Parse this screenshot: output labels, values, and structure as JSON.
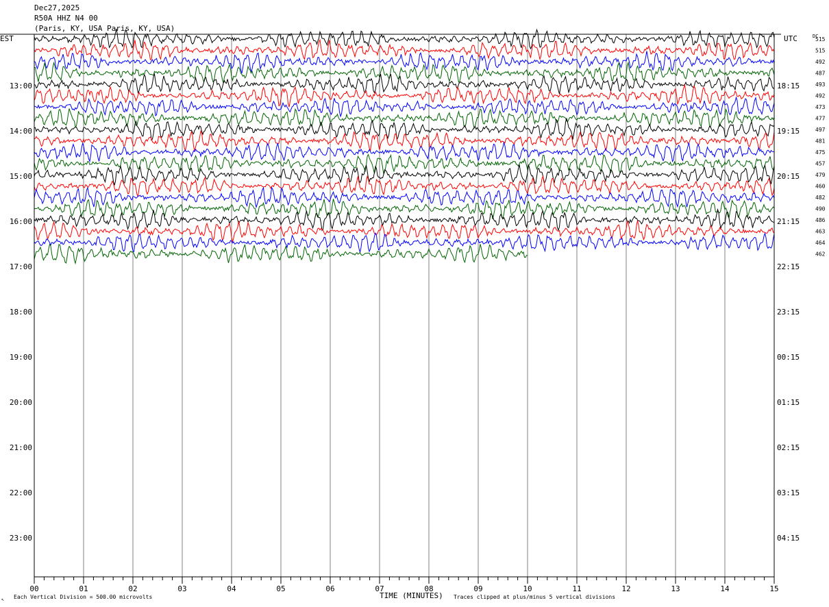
{
  "header": {
    "date": "Dec27,2025",
    "station": "R50A HHZ N4 00",
    "location": "(Paris, KY, USA Paris, KY, USA)"
  },
  "axis": {
    "left_tz": "EST",
    "right_tz": "UTC",
    "dc_label": "DC",
    "xlabel": "TIME (MINUTES)"
  },
  "footer": {
    "scale": "Each Vertical Division =  500.00 microvolts",
    "clip": "Traces clipped at plus/minus 5 vertical divisions",
    "mark": "↖"
  },
  "chart_data": {
    "type": "line",
    "x_range_minutes": [
      0,
      15
    ],
    "x_ticks": [
      "00",
      "01",
      "02",
      "03",
      "04",
      "05",
      "06",
      "07",
      "08",
      "09",
      "10",
      "11",
      "12",
      "13",
      "14",
      "15"
    ],
    "left_hour_labels": [
      "13:00",
      "14:00",
      "15:00",
      "16:00",
      "17:00",
      "18:00",
      "19:00",
      "20:00",
      "21:00",
      "22:00",
      "23:00"
    ],
    "right_hour_labels": [
      "18:15",
      "19:15",
      "20:15",
      "21:15",
      "22:15",
      "23:15",
      "00:15",
      "01:15",
      "02:15",
      "03:15",
      "04:15"
    ],
    "trace_colors": [
      "#000000",
      "#ff0000",
      "#0000ff",
      "#006400"
    ],
    "dc_offsets": [
      515,
      515,
      492,
      487,
      493,
      492,
      473,
      477,
      497,
      481,
      475,
      457,
      479,
      460,
      482,
      490,
      486,
      463,
      464,
      462
    ],
    "last_trace_end_minute": 10,
    "grid": true
  }
}
